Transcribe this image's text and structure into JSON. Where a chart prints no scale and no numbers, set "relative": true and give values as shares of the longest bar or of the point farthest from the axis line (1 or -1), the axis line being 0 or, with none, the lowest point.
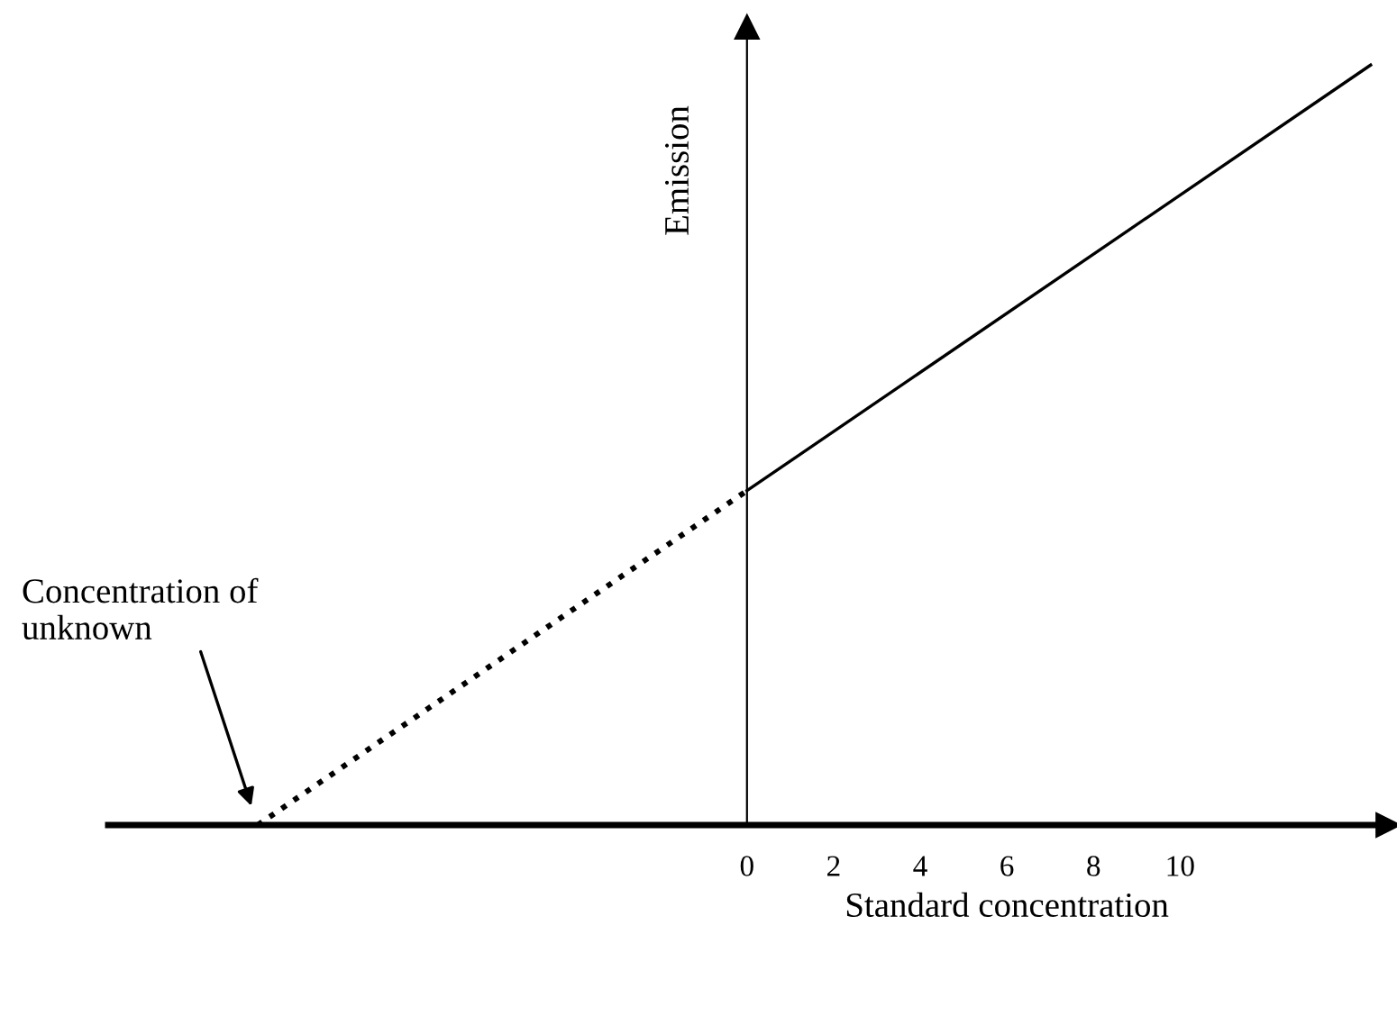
{
  "chart_data": {
    "type": "line",
    "xlabel": "Standard concentration",
    "ylabel": "Emission",
    "relative": true,
    "xlim": [
      -14.75,
      14.8
    ],
    "xticks": [
      0,
      2,
      4,
      6,
      8,
      10
    ],
    "tick_labels": "x",
    "series": [
      {
        "color": "#000000",
        "line_style": "dotted",
        "x": [
          -11.3,
          0
        ],
        "values": [
          0,
          0.44
        ]
      },
      {
        "color": "#000000",
        "line_style": "solid",
        "x": [
          0,
          14.4
        ],
        "values": [
          0.44,
          1
        ]
      }
    ],
    "annotations": [
      "Concentration of\nunknown"
    ],
    "legend": false
  }
}
